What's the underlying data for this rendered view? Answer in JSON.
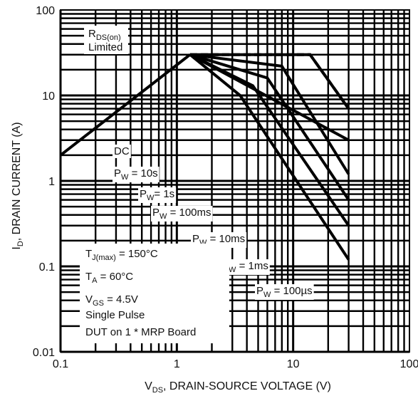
{
  "chart_data": {
    "type": "line",
    "x_scale": "log",
    "y_scale": "log",
    "xlim": [
      0.1,
      100
    ],
    "ylim": [
      0.01,
      100
    ],
    "grid": true,
    "x_ticks": [
      "0.1",
      "1",
      "10",
      "100"
    ],
    "y_ticks": [
      "0.01",
      "0.1",
      "1",
      "10",
      "100"
    ],
    "xlabel": {
      "main": "V",
      "sub": "DS",
      "rest": ", DRAIN-SOURCE VOLTAGE (V)"
    },
    "ylabel": {
      "main": "I",
      "sub": "D",
      "rest": ", DRAIN CURRENT (A)"
    },
    "rds_label": {
      "main": "R",
      "sub": "DS(on)",
      "line2": "Limited"
    },
    "conditions": [
      {
        "main": "T",
        "sub": "J(max)",
        "rest": " = 150°C"
      },
      {
        "main": "T",
        "sub": "A",
        "rest": " = 60°C"
      },
      {
        "main": "V",
        "sub": "GS",
        "rest": " = 4.5V"
      },
      {
        "main": "Single Pulse",
        "sub": "",
        "rest": ""
      },
      {
        "main": "DUT on 1 * MRP Board",
        "sub": "",
        "rest": ""
      }
    ],
    "rds_limit": {
      "x": [
        0.1,
        1.3
      ],
      "y": [
        2,
        30
      ]
    },
    "series": [
      {
        "name": "DC",
        "label_main": "DC",
        "label_sub": "",
        "label_rest": "",
        "x": [
          1.3,
          3.5,
          30
        ],
        "y": [
          30,
          10,
          0.12
        ]
      },
      {
        "name": "PW = 10s",
        "label_main": "P",
        "label_sub": "W",
        "label_rest": " = 10s",
        "x": [
          1.3,
          4.5,
          30
        ],
        "y": [
          30,
          13,
          0.3
        ]
      },
      {
        "name": "PW = 1s",
        "label_main": "P",
        "label_sub": "W",
        "label_rest": "= 1s",
        "x": [
          1.3,
          6,
          30
        ],
        "y": [
          30,
          16,
          0.6
        ]
      },
      {
        "name": "PW = 100ms",
        "label_main": "P",
        "label_sub": "W",
        "label_rest": " = 100ms",
        "x": [
          1.3,
          8,
          30
        ],
        "y": [
          30,
          22,
          1.2
        ]
      },
      {
        "name": "PW = 10ms",
        "label_main": "P",
        "label_sub": "W",
        "label_rest": " = 10ms",
        "x": [
          1.3,
          30
        ],
        "y": [
          30,
          3
        ]
      },
      {
        "name": "PW = 1ms",
        "label_main": "P",
        "label_sub": "W",
        "label_rest": " = 1ms",
        "x": [
          1.3,
          14,
          30
        ],
        "y": [
          30,
          30,
          7
        ]
      },
      {
        "name": "PW = 100µs",
        "label_main": "P",
        "label_sub": "W",
        "label_rest": " = 100µs",
        "x": [
          1.3,
          14,
          30
        ],
        "y": [
          30,
          30,
          7
        ]
      }
    ]
  }
}
